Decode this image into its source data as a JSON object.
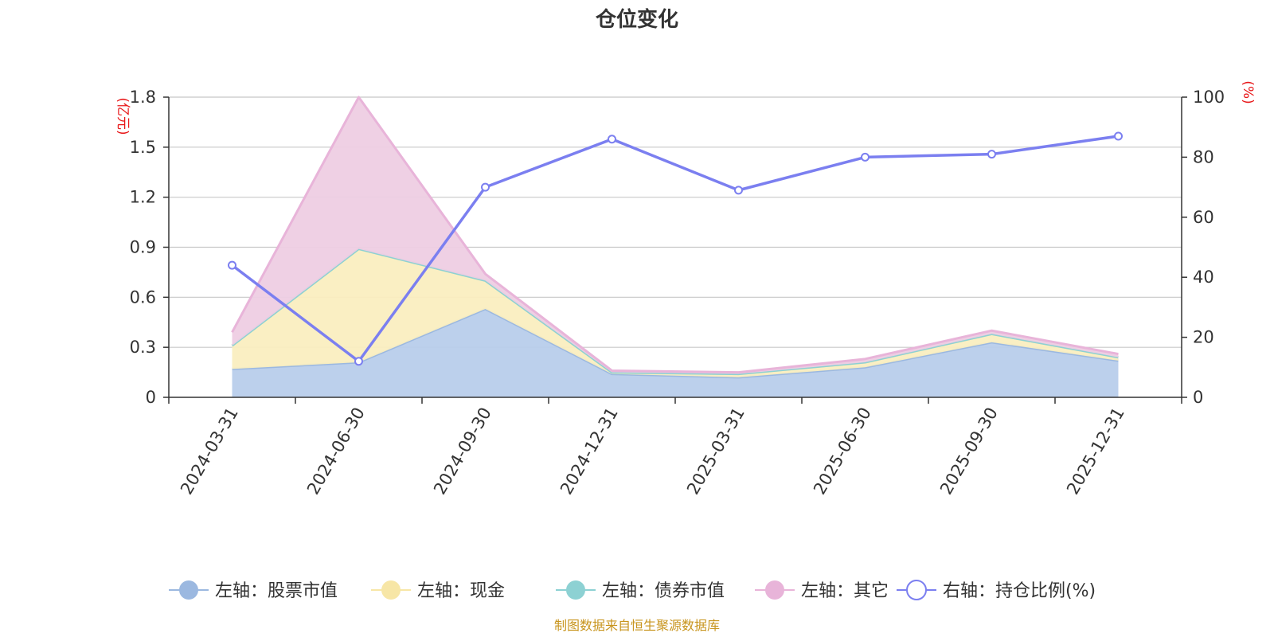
{
  "chart_data": {
    "type": "area",
    "title": "仓位变化",
    "categories": [
      "2024-03-31",
      "2024-06-30",
      "2024-09-30",
      "2024-12-31",
      "2025-03-31",
      "2025-06-30",
      "2025-09-30",
      "2025-12-31"
    ],
    "left_axis": {
      "unit": "(亿元)",
      "ylim": [
        0,
        1.8
      ],
      "ticks": [
        "0",
        "0.3",
        "0.6",
        "0.9",
        "1.2",
        "1.5",
        "1.8"
      ],
      "tick_values": [
        0,
        0.3,
        0.6,
        0.9,
        1.2,
        1.5,
        1.8
      ]
    },
    "right_axis": {
      "unit": "(%)",
      "ylim": [
        0,
        100
      ],
      "ticks": [
        "0",
        "20",
        "40",
        "60",
        "80",
        "100"
      ],
      "tick_values": [
        0,
        20,
        40,
        60,
        80,
        100
      ]
    },
    "stacked_series": [
      {
        "name": "左轴：股票市值",
        "color": "#9bb8e0",
        "fill": "#b8cdeb",
        "values": [
          0.17,
          0.21,
          0.53,
          0.14,
          0.12,
          0.18,
          0.33,
          0.22
        ]
      },
      {
        "name": "左轴：现金",
        "color": "#f7e6a6",
        "fill": "#faeec0",
        "values": [
          0.14,
          0.68,
          0.17,
          0.01,
          0.02,
          0.03,
          0.05,
          0.02
        ]
      },
      {
        "name": "左轴：债券市值",
        "color": "#8dd1d3",
        "fill": "#b4e2e3",
        "values": [
          0,
          0,
          0,
          0,
          0,
          0,
          0,
          0
        ]
      },
      {
        "name": "左轴：其它",
        "color": "#e8b4d9",
        "fill": "#eecde3",
        "values": [
          0.08,
          0.91,
          0.04,
          0.01,
          0.01,
          0.02,
          0.02,
          0.02
        ]
      }
    ],
    "line_series": {
      "name": "右轴：持仓比例(%)",
      "color": "#7b7ff0",
      "values": [
        44,
        12,
        70,
        86,
        69,
        80,
        81,
        87
      ]
    }
  },
  "source": "制图数据来自恒生聚源数据库"
}
